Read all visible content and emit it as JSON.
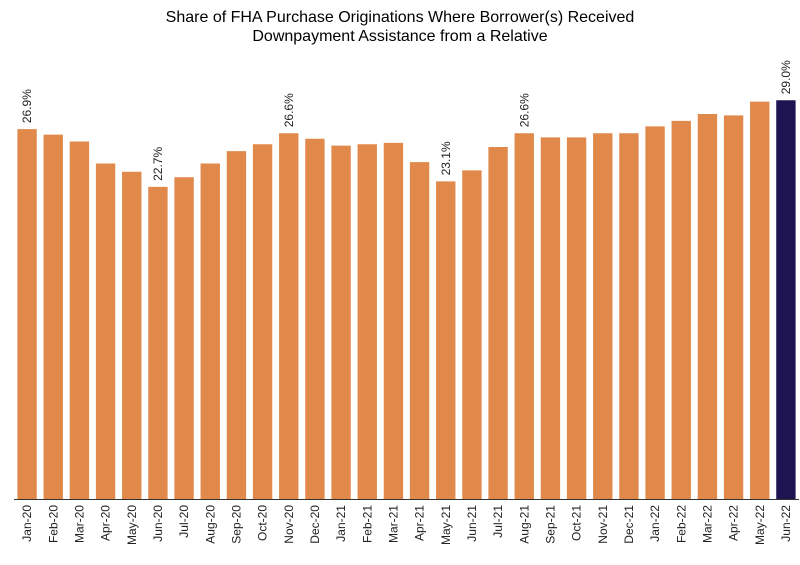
{
  "chart_data": {
    "type": "bar",
    "title_lines": [
      "Share of FHA Purchase Originations Where Borrower(s) Received",
      "Downpayment Assistance from a Relative"
    ],
    "xlabel": "",
    "ylabel": "",
    "ylim": [
      0,
      29.6
    ],
    "grid": false,
    "legend": "none",
    "categories": [
      "Jan-20",
      "Feb-20",
      "Mar-20",
      "Apr-20",
      "May-20",
      "Jun-20",
      "Jul-20",
      "Aug-20",
      "Sep-20",
      "Oct-20",
      "Nov-20",
      "Dec-20",
      "Jan-21",
      "Feb-21",
      "Mar-21",
      "Apr-21",
      "May-21",
      "Jun-21",
      "Jul-21",
      "Aug-21",
      "Sep-21",
      "Oct-21",
      "Nov-21",
      "Dec-21",
      "Jan-22",
      "Feb-22",
      "Mar-22",
      "Apr-22",
      "May-22",
      "Jun-22"
    ],
    "values": [
      26.9,
      26.5,
      26.0,
      24.4,
      23.8,
      22.7,
      23.4,
      24.4,
      25.3,
      25.8,
      26.6,
      26.2,
      25.7,
      25.8,
      25.9,
      24.5,
      23.1,
      23.9,
      25.6,
      26.6,
      26.3,
      26.3,
      26.6,
      26.6,
      27.1,
      27.5,
      28.0,
      27.9,
      28.9,
      29.0
    ],
    "data_labels": [
      {
        "index": 0,
        "text": "26.9%"
      },
      {
        "index": 5,
        "text": "22.7%"
      },
      {
        "index": 10,
        "text": "26.6%"
      },
      {
        "index": 16,
        "text": "23.1%"
      },
      {
        "index": 19,
        "text": "26.6%"
      },
      {
        "index": 29,
        "text": "29.0%"
      }
    ],
    "highlight_index": 29,
    "colors": {
      "bar": "#E0894A",
      "highlight": "#1E1452",
      "axis": "#333333"
    }
  }
}
